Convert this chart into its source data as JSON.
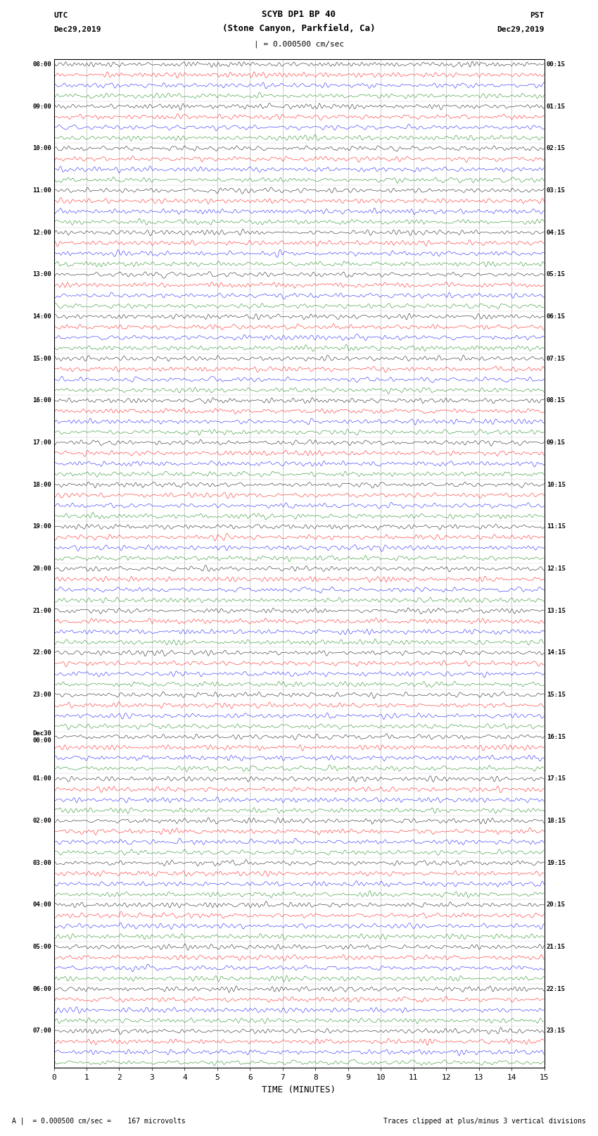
{
  "title_line1": "SCYB DP1 BP 40",
  "title_line2": "(Stone Canyon, Parkfield, Ca)",
  "scale_text": "| = 0.000500 cm/sec",
  "left_label": "UTC",
  "left_date": "Dec29,2019",
  "right_timezone": "PST",
  "right_date": "Dec29,2019",
  "footer_left": "A |  = 0.000500 cm/sec =    167 microvolts",
  "footer_right": "Traces clipped at plus/minus 3 vertical divisions",
  "xlabel": "TIME (MINUTES)",
  "xlim": [
    0,
    15
  ],
  "xticks": [
    0,
    1,
    2,
    3,
    4,
    5,
    6,
    7,
    8,
    9,
    10,
    11,
    12,
    13,
    14,
    15
  ],
  "colors": [
    "black",
    "red",
    "blue",
    "green"
  ],
  "minutes_per_row": 15,
  "sample_rate": 100,
  "noise_amplitude": 0.1,
  "left_times": [
    "08:00",
    "",
    "",
    "",
    "09:00",
    "",
    "",
    "",
    "10:00",
    "",
    "",
    "",
    "11:00",
    "",
    "",
    "",
    "12:00",
    "",
    "",
    "",
    "13:00",
    "",
    "",
    "",
    "14:00",
    "",
    "",
    "",
    "15:00",
    "",
    "",
    "",
    "16:00",
    "",
    "",
    "",
    "17:00",
    "",
    "",
    "",
    "18:00",
    "",
    "",
    "",
    "19:00",
    "",
    "",
    "",
    "20:00",
    "",
    "",
    "",
    "21:00",
    "",
    "",
    "",
    "22:00",
    "",
    "",
    "",
    "23:00",
    "",
    "",
    "",
    "Dec30\n00:00",
    "",
    "",
    "",
    "01:00",
    "",
    "",
    "",
    "02:00",
    "",
    "",
    "",
    "03:00",
    "",
    "",
    "",
    "04:00",
    "",
    "",
    "",
    "05:00",
    "",
    "",
    "",
    "06:00",
    "",
    "",
    "",
    "07:00",
    "",
    "",
    ""
  ],
  "right_times": [
    "00:15",
    "",
    "",
    "",
    "01:15",
    "",
    "",
    "",
    "02:15",
    "",
    "",
    "",
    "03:15",
    "",
    "",
    "",
    "04:15",
    "",
    "",
    "",
    "05:15",
    "",
    "",
    "",
    "06:15",
    "",
    "",
    "",
    "07:15",
    "",
    "",
    "",
    "08:15",
    "",
    "",
    "",
    "09:15",
    "",
    "",
    "",
    "10:15",
    "",
    "",
    "",
    "11:15",
    "",
    "",
    "",
    "12:15",
    "",
    "",
    "",
    "13:15",
    "",
    "",
    "",
    "14:15",
    "",
    "",
    "",
    "15:15",
    "",
    "",
    "",
    "16:15",
    "",
    "",
    "",
    "17:15",
    "",
    "",
    "",
    "18:15",
    "",
    "",
    "",
    "19:15",
    "",
    "",
    "",
    "20:15",
    "",
    "",
    "",
    "21:15",
    "",
    "",
    "",
    "22:15",
    "",
    "",
    "",
    "23:15",
    "",
    "",
    ""
  ],
  "events": [
    {
      "row": 48,
      "color": "red",
      "t0": 7.4,
      "amp": 2.5,
      "decay": 0.15,
      "freq": 6
    },
    {
      "row": 52,
      "color": "red",
      "t0": 6.5,
      "amp": 2.0,
      "decay": 0.18,
      "freq": 6
    },
    {
      "row": 65,
      "color": "red",
      "t0": 7.5,
      "amp": 2.2,
      "decay": 0.15,
      "freq": 6
    },
    {
      "row": 69,
      "color": "blue",
      "t0": 1.8,
      "amp": 2.5,
      "decay": 0.15,
      "freq": 6
    },
    {
      "row": 73,
      "color": "red",
      "t0": 1.8,
      "amp": 2.0,
      "decay": 0.15,
      "freq": 6
    },
    {
      "row": 80,
      "color": "black",
      "t0": 7.2,
      "amp": 1.5,
      "decay": 0.12,
      "freq": 5
    },
    {
      "row": 81,
      "color": "red",
      "t0": 2.0,
      "amp": 3.0,
      "decay": 0.4,
      "freq": 5
    },
    {
      "row": 82,
      "color": "blue",
      "t0": 2.0,
      "amp": 3.0,
      "decay": 0.4,
      "freq": 5
    },
    {
      "row": 83,
      "color": "green",
      "t0": 2.0,
      "amp": 2.5,
      "decay": 0.35,
      "freq": 5
    },
    {
      "row": 88,
      "color": "red",
      "t0": 13.3,
      "amp": 2.0,
      "decay": 0.2,
      "freq": 6
    }
  ],
  "background_color": "white"
}
